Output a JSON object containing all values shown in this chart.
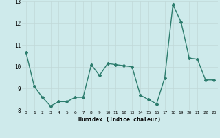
{
  "x": [
    0,
    1,
    2,
    3,
    4,
    5,
    6,
    7,
    8,
    9,
    10,
    11,
    12,
    13,
    14,
    15,
    16,
    17,
    18,
    19,
    20,
    21,
    22,
    23
  ],
  "y": [
    10.65,
    9.1,
    8.6,
    8.2,
    8.4,
    8.4,
    8.6,
    8.6,
    10.1,
    9.6,
    10.15,
    10.1,
    10.05,
    10.0,
    8.7,
    8.5,
    8.3,
    9.5,
    12.85,
    12.05,
    10.4,
    10.35,
    9.4,
    9.4
  ],
  "xlabel": "Humidex (Indice chaleur)",
  "ylim": [
    8,
    13
  ],
  "xlim": [
    -0.5,
    23.5
  ],
  "yticks": [
    8,
    9,
    10,
    11,
    12,
    13
  ],
  "xticks": [
    0,
    1,
    2,
    3,
    4,
    5,
    6,
    7,
    8,
    9,
    10,
    11,
    12,
    13,
    14,
    15,
    16,
    17,
    18,
    19,
    20,
    21,
    22,
    23
  ],
  "line_color": "#2d7d6e",
  "bg_color": "#ceeaeb",
  "grid_color": "#c0d8d8",
  "marker": "D",
  "marker_size": 2.0,
  "line_width": 1.0
}
